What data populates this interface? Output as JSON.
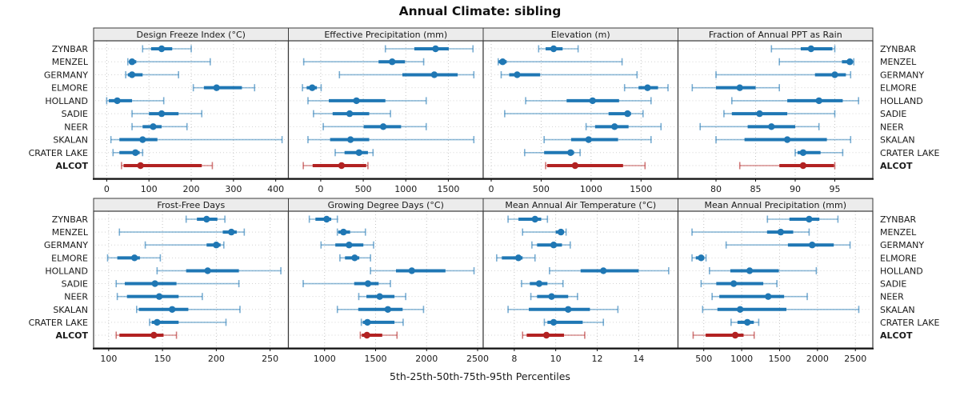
{
  "title": "Annual Climate: sibling",
  "footer": "5th-25th-50th-75th-95th Percentiles",
  "colors": {
    "site_blue": "#1f77b4",
    "highlight_red": "#b22222",
    "grid": "#c4c4c4",
    "row_guide": "#d4d4d4",
    "panel_border": "#3a3a3a",
    "axis_line": "#111111",
    "header_fill": "#ececec",
    "text": "#1a1a1a"
  },
  "highlight_site": "ALCOT",
  "chart_data": {
    "type": "dot-whisker percentile trellis (5th-25th-50th-75th-95th), 2 rows x 4 panels",
    "percentiles": [
      5,
      25,
      50,
      75,
      95
    ],
    "legend_position": "none",
    "grid": "dotted",
    "sites": [
      "ZYNBAR",
      "MENZEL",
      "GERMANY",
      "ELMORE",
      "HOLLAND",
      "SADIE",
      "NEER",
      "SKALAN",
      "CRATER LAKE",
      "ALCOT"
    ],
    "panels": [
      {
        "title": "Design Freeze Index (°C)",
        "xlim": [
          -31,
          430
        ],
        "ticks": [
          0,
          100,
          200,
          300,
          400
        ],
        "values": {
          "ZYNBAR": [
            85,
            105,
            130,
            155,
            200
          ],
          "MENZEL": [
            50,
            55,
            60,
            70,
            245
          ],
          "GERMANY": [
            45,
            50,
            60,
            85,
            170
          ],
          "ELMORE": [
            205,
            230,
            260,
            320,
            350
          ],
          "HOLLAND": [
            0,
            5,
            25,
            60,
            135
          ],
          "SADIE": [
            60,
            100,
            130,
            170,
            225
          ],
          "NEER": [
            60,
            85,
            110,
            130,
            190
          ],
          "SKALAN": [
            10,
            30,
            85,
            120,
            415
          ],
          "CRATER LAKE": [
            15,
            30,
            68,
            78,
            85
          ],
          "ALCOT": [
            35,
            40,
            80,
            225,
            250
          ]
        }
      },
      {
        "title": "Effective Precipitation (mm)",
        "xlim": [
          -380,
          1910
        ],
        "ticks": [
          0,
          500,
          1000,
          1500
        ],
        "values": {
          "ZYNBAR": [
            760,
            1100,
            1350,
            1505,
            1790
          ],
          "MENZEL": [
            -200,
            680,
            840,
            990,
            1210
          ],
          "GERMANY": [
            220,
            960,
            1335,
            1610,
            1800
          ],
          "ELMORE": [
            -215,
            -165,
            -100,
            -45,
            5
          ],
          "HOLLAND": [
            -150,
            95,
            420,
            760,
            1240
          ],
          "SADIE": [
            -85,
            140,
            340,
            570,
            820
          ],
          "NEER": [
            30,
            505,
            735,
            945,
            1240
          ],
          "SKALAN": [
            -150,
            110,
            350,
            570,
            1800
          ],
          "CRATER LAKE": [
            170,
            280,
            450,
            555,
            615
          ],
          "ALCOT": [
            -205,
            -95,
            245,
            535,
            555
          ]
        }
      },
      {
        "title": "Elevation (m)",
        "xlim": [
          -80,
          1870
        ],
        "ticks": [
          0,
          500,
          1000,
          1500
        ],
        "values": {
          "ZYNBAR": [
            475,
            545,
            625,
            715,
            870
          ],
          "MENZEL": [
            70,
            75,
            115,
            155,
            1310
          ],
          "GERMANY": [
            100,
            180,
            260,
            490,
            1460
          ],
          "ELMORE": [
            1335,
            1475,
            1565,
            1670,
            1770
          ],
          "HOLLAND": [
            345,
            755,
            1015,
            1280,
            1600
          ],
          "SADIE": [
            135,
            1175,
            1365,
            1400,
            1520
          ],
          "NEER": [
            950,
            1040,
            1235,
            1375,
            1700
          ],
          "SKALAN": [
            530,
            800,
            975,
            1270,
            1600
          ],
          "CRATER LAKE": [
            335,
            530,
            795,
            830,
            890
          ],
          "ALCOT": [
            545,
            560,
            840,
            1320,
            1540
          ]
        }
      },
      {
        "title": "Fraction of Annual PPT as Rain",
        "xlim": [
          75.2,
          99.8
        ],
        "ticks": [
          80,
          85,
          90,
          95
        ],
        "values": {
          "ZYNBAR": [
            87,
            90.7,
            92,
            94.7,
            95
          ],
          "MENZEL": [
            88,
            95.9,
            96.9,
            97.2,
            97.4
          ],
          "GERMANY": [
            80,
            92.5,
            95,
            96.4,
            97
          ],
          "ELMORE": [
            77,
            80,
            83,
            85,
            88
          ],
          "HOLLAND": [
            82,
            89,
            93,
            96,
            98
          ],
          "SADIE": [
            81,
            82,
            85.5,
            89,
            95
          ],
          "NEER": [
            78,
            84,
            87,
            90,
            93
          ],
          "SKALAN": [
            80,
            83.6,
            89,
            94,
            97
          ],
          "CRATER LAKE": [
            90,
            90.3,
            91,
            93.2,
            96
          ],
          "ALCOT": [
            83,
            88,
            91,
            94.9,
            95
          ]
        }
      },
      {
        "title": "Frost-Free Days",
        "xlim": [
          86,
          267
        ],
        "ticks": [
          100,
          150,
          200,
          250
        ],
        "values": {
          "ZYNBAR": [
            172,
            182,
            191,
            201,
            208
          ],
          "MENZEL": [
            110,
            206,
            214,
            219,
            226
          ],
          "GERMANY": [
            134,
            191,
            200,
            204,
            207
          ],
          "ELMORE": [
            99,
            108,
            124,
            129,
            148
          ],
          "HOLLAND": [
            145,
            172,
            192,
            221,
            260
          ],
          "SADIE": [
            107,
            115,
            143,
            163,
            221
          ],
          "NEER": [
            108,
            117,
            147,
            165,
            187
          ],
          "SKALAN": [
            126,
            128,
            159,
            174,
            222
          ],
          "CRATER LAKE": [
            138,
            140,
            145,
            165,
            209
          ],
          "ALCOT": [
            107,
            110,
            142,
            151,
            163
          ]
        }
      },
      {
        "title": "Growing Degree Days (°C)",
        "xlim": [
          645,
          2555
        ],
        "ticks": [
          1000,
          1500,
          2000,
          2500
        ],
        "values": {
          "ZYNBAR": [
            850,
            910,
            1020,
            1065,
            1125
          ],
          "MENZEL": [
            1125,
            1135,
            1185,
            1250,
            1400
          ],
          "GERMANY": [
            965,
            1105,
            1240,
            1380,
            1480
          ],
          "ELMORE": [
            1150,
            1200,
            1295,
            1340,
            1450
          ],
          "HOLLAND": [
            1450,
            1700,
            1855,
            2185,
            2465
          ],
          "SADIE": [
            790,
            1290,
            1425,
            1530,
            1645
          ],
          "NEER": [
            1335,
            1410,
            1540,
            1685,
            1795
          ],
          "SKALAN": [
            1125,
            1330,
            1620,
            1765,
            1970
          ],
          "CRATER LAKE": [
            1360,
            1375,
            1420,
            1685,
            1770
          ],
          "ALCOT": [
            1350,
            1365,
            1415,
            1565,
            1710
          ]
        }
      },
      {
        "title": "Mean Annual Air Temperature (°C)",
        "xlim": [
          6.5,
          15.9
        ],
        "ticks": [
          8,
          10,
          12,
          14
        ],
        "values": {
          "ZYNBAR": [
            7.7,
            8.2,
            9.0,
            9.3,
            9.6
          ],
          "MENZEL": [
            8.4,
            10.0,
            10.25,
            10.4,
            10.5
          ],
          "GERMANY": [
            8.85,
            9.1,
            9.9,
            10.3,
            10.7
          ],
          "ELMORE": [
            7.15,
            7.4,
            8.2,
            8.4,
            9.0
          ],
          "HOLLAND": [
            9.7,
            11.2,
            12.3,
            14.0,
            15.45
          ],
          "SADIE": [
            8.35,
            8.75,
            9.2,
            9.6,
            10.35
          ],
          "NEER": [
            8.8,
            9.1,
            9.8,
            10.6,
            11.05
          ],
          "SKALAN": [
            7.7,
            8.7,
            10.6,
            11.65,
            13.0
          ],
          "CRATER LAKE": [
            9.45,
            9.6,
            9.9,
            11.3,
            12.3
          ],
          "ALCOT": [
            8.4,
            8.6,
            9.55,
            10.4,
            11.4
          ]
        }
      },
      {
        "title": "Mean Annual Precipitation (mm)",
        "xlim": [
          160,
          2730
        ],
        "ticks": [
          500,
          1000,
          1500,
          2000,
          2500
        ],
        "values": {
          "ZYNBAR": [
            1340,
            1630,
            1890,
            2025,
            2270
          ],
          "MENZEL": [
            345,
            1335,
            1515,
            1680,
            1890
          ],
          "GERMANY": [
            795,
            1610,
            1930,
            2215,
            2430
          ],
          "ELMORE": [
            345,
            395,
            465,
            505,
            530
          ],
          "HOLLAND": [
            575,
            850,
            1105,
            1490,
            1985
          ],
          "SADIE": [
            465,
            665,
            895,
            1285,
            1465
          ],
          "NEER": [
            610,
            705,
            1350,
            1560,
            1865
          ],
          "SKALAN": [
            485,
            680,
            980,
            1590,
            2545
          ],
          "CRATER LAKE": [
            860,
            945,
            1075,
            1160,
            1225
          ],
          "ALCOT": [
            360,
            525,
            915,
            1025,
            1165
          ]
        }
      }
    ]
  }
}
